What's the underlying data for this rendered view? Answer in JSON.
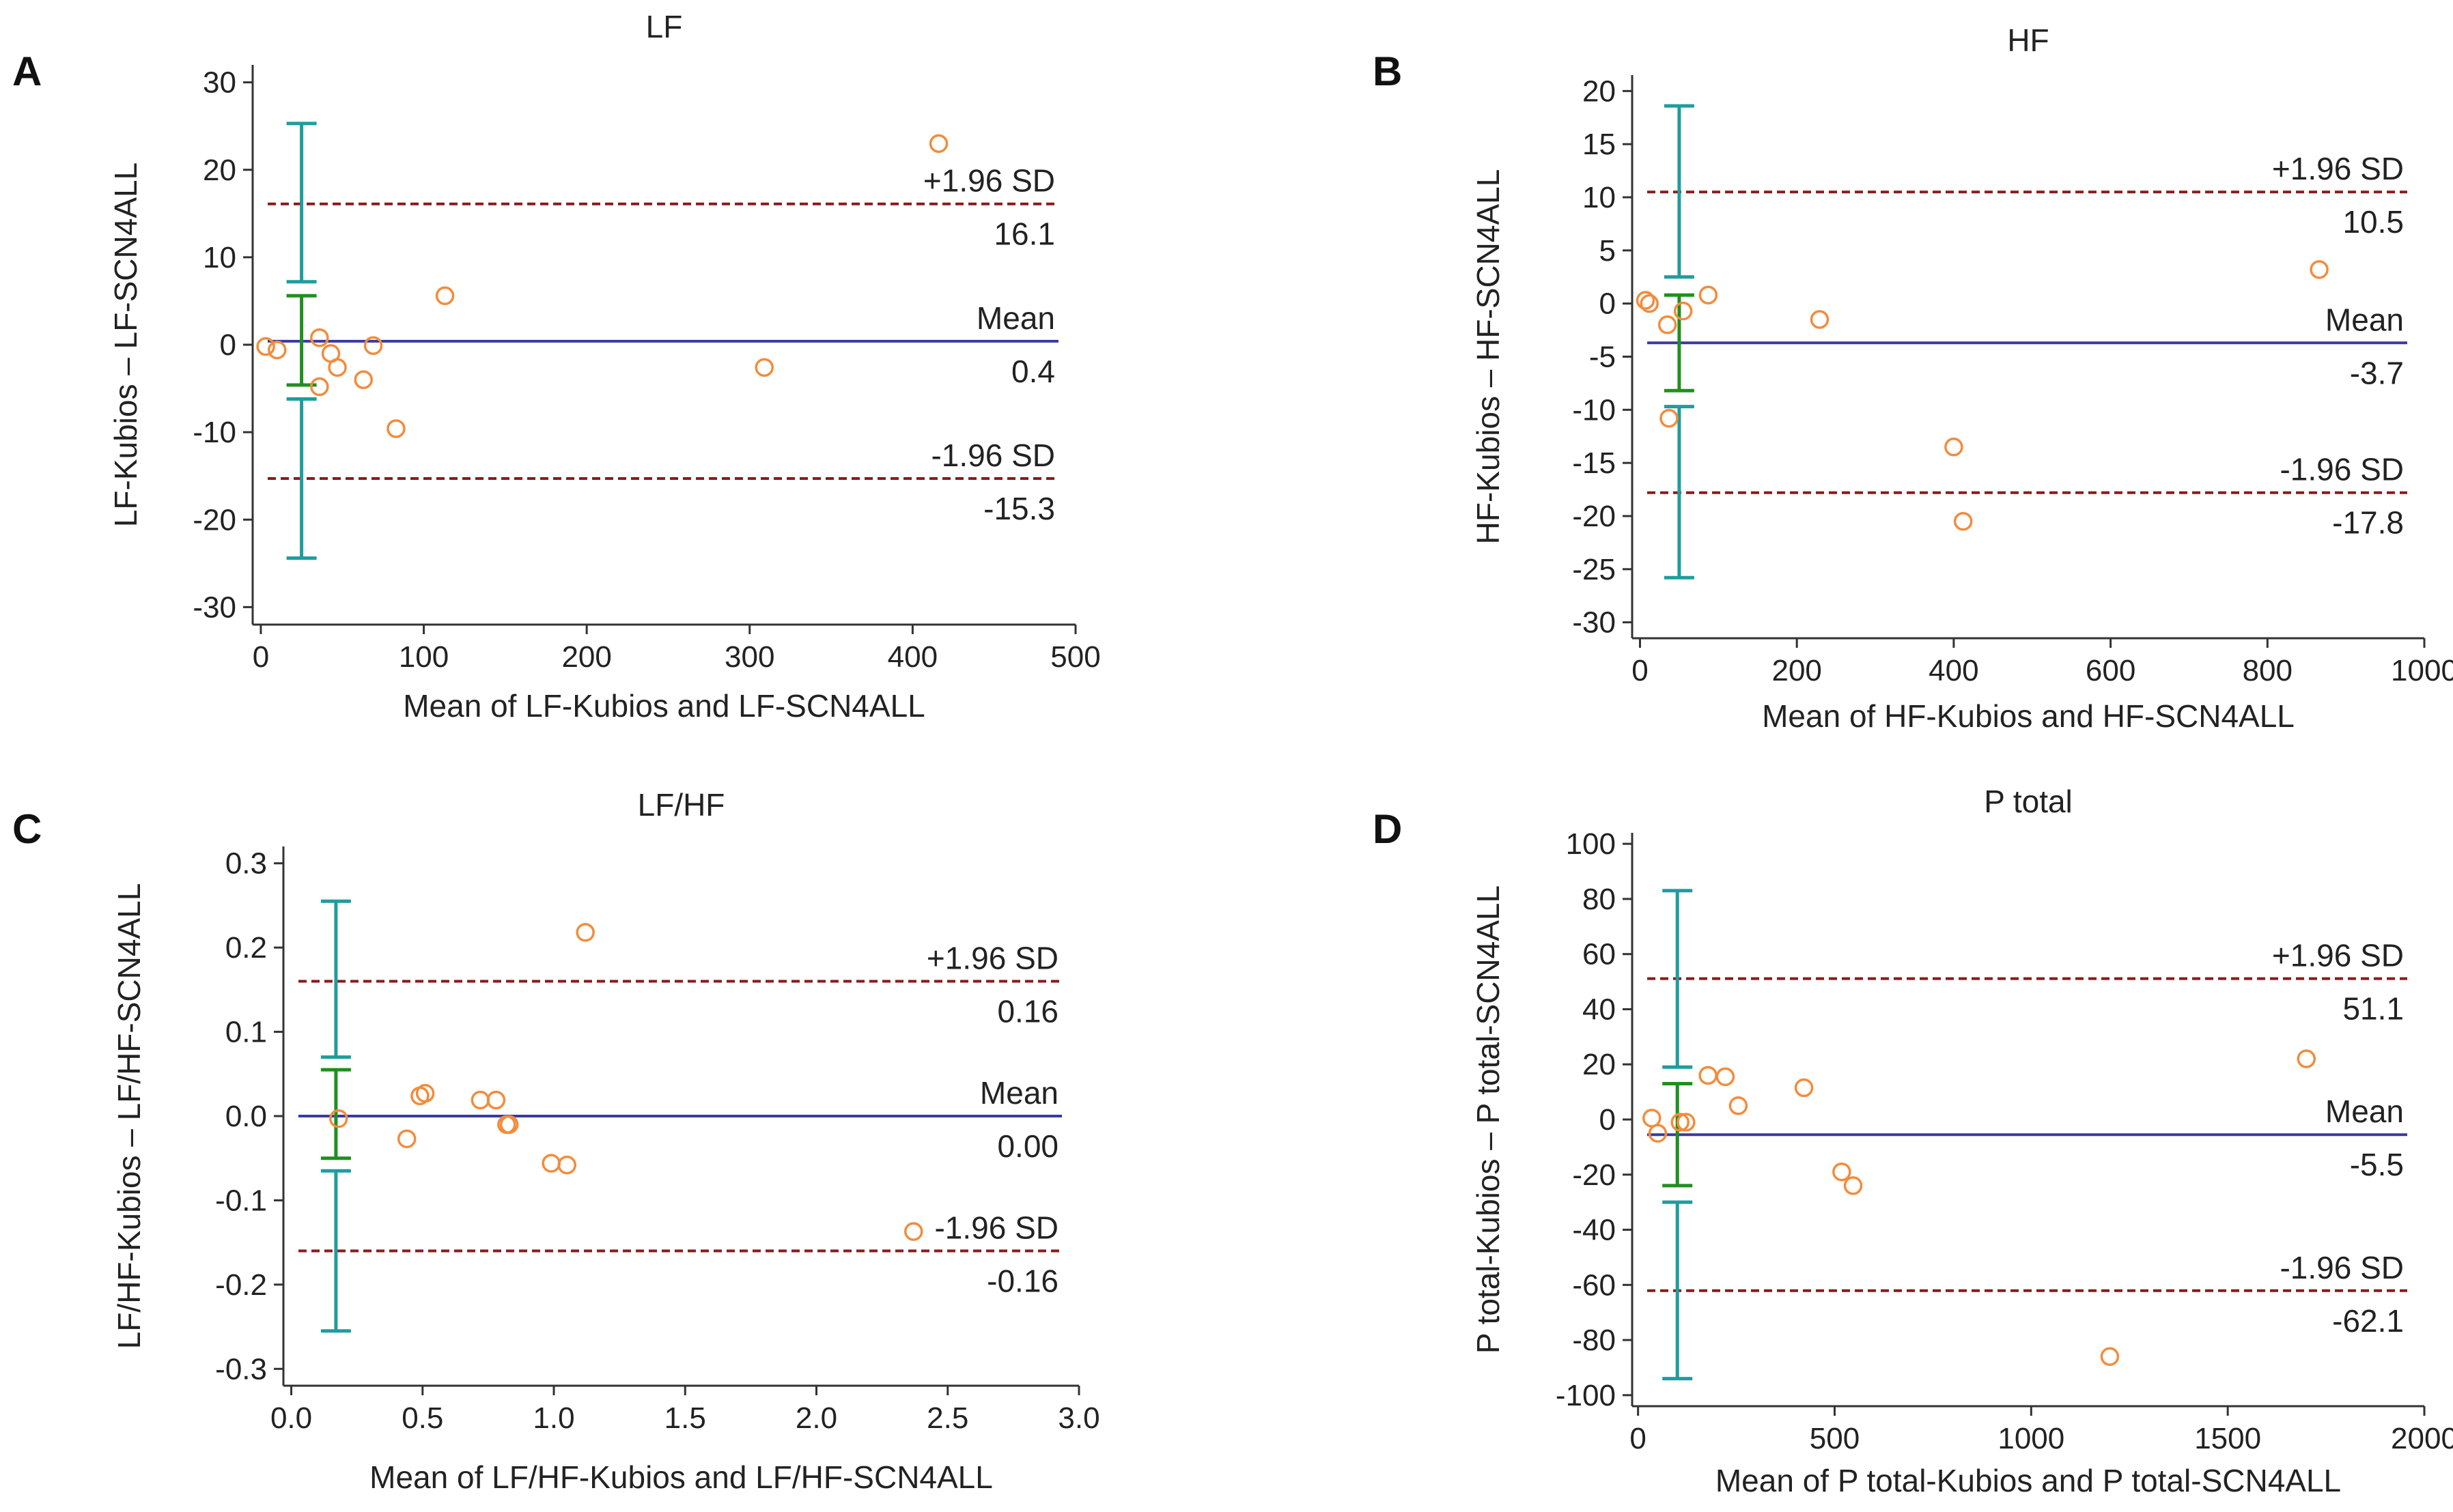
{
  "colors": {
    "mean_line": "#3a3a9e",
    "sd_line": "#8b1a1a",
    "point": "#f28c3c",
    "ci_outer": "#1e9d9d",
    "ci_mean": "#1f8f1f",
    "axis": "#333333"
  },
  "chart_data": [
    {
      "panel": "A",
      "type": "scatter",
      "title": "LF",
      "xlabel": "Mean of LF-Kubios and LF-SCN4ALL",
      "ylabel": "LF-Kubios – LF-SCN4ALL",
      "xlim": [
        -5,
        500
      ],
      "ylim": [
        -32,
        32
      ],
      "xticks": [
        0,
        100,
        200,
        300,
        400,
        500
      ],
      "xtick_labels": [
        "0",
        "100",
        "200",
        "300",
        "400",
        "500"
      ],
      "yticks": [
        30,
        20,
        10,
        0,
        -10,
        -20,
        -30
      ],
      "ytick_labels": [
        "30",
        "20",
        "10",
        "0",
        "-10",
        "-20",
        "-30"
      ],
      "mean": 0.4,
      "upper_loa": 16.1,
      "lower_loa": -15.3,
      "mean_text": "Mean",
      "mean_value_text": "0.4",
      "upper_text": "+1.96 SD",
      "upper_value_text": "16.1",
      "lower_text": "-1.96 SD",
      "lower_value_text": "-15.3",
      "ci_x": 25,
      "ci_upper": [
        7.2,
        25.3
      ],
      "ci_mean": [
        -4.6,
        5.6
      ],
      "ci_lower": [
        -24.4,
        -6.2
      ],
      "points": [
        {
          "x": 3,
          "y": -0.2
        },
        {
          "x": 10,
          "y": -0.6
        },
        {
          "x": 36,
          "y": 0.8
        },
        {
          "x": 36,
          "y": -4.8
        },
        {
          "x": 43,
          "y": -1.0
        },
        {
          "x": 47,
          "y": -2.6
        },
        {
          "x": 63,
          "y": -4.0
        },
        {
          "x": 69,
          "y": -0.1
        },
        {
          "x": 83,
          "y": -9.6
        },
        {
          "x": 113,
          "y": 5.6
        },
        {
          "x": 309,
          "y": -2.6
        },
        {
          "x": 416,
          "y": 23.0
        }
      ]
    },
    {
      "panel": "B",
      "type": "scatter",
      "title": "HF",
      "xlabel": "Mean of HF-Kubios and HF-SCN4ALL",
      "ylabel": "HF-Kubios – HF-SCN4ALL",
      "xlim": [
        -10,
        1000
      ],
      "ylim": [
        -31.5,
        21.5
      ],
      "xticks": [
        0,
        200,
        400,
        600,
        800,
        1000
      ],
      "xtick_labels": [
        "0",
        "200",
        "400",
        "600",
        "800",
        "1000"
      ],
      "yticks": [
        20,
        15,
        10,
        5,
        0,
        -5,
        -10,
        -15,
        -20,
        -25,
        -30
      ],
      "ytick_labels": [
        "20",
        "15",
        "10",
        "5",
        "0",
        "-5",
        "-10",
        "-15",
        "-20",
        "-25",
        "-30"
      ],
      "mean": -3.7,
      "upper_loa": 10.5,
      "lower_loa": -17.8,
      "mean_text": "Mean",
      "mean_value_text": "-3.7",
      "upper_text": "+1.96 SD",
      "upper_value_text": "10.5",
      "lower_text": "-1.96 SD",
      "lower_value_text": "-17.8",
      "ci_x": 50,
      "ci_upper": [
        2.5,
        18.6
      ],
      "ci_mean": [
        -8.2,
        0.8
      ],
      "ci_lower": [
        -25.8,
        -9.7
      ],
      "points": [
        {
          "x": 7,
          "y": 0.3
        },
        {
          "x": 12,
          "y": 0.0
        },
        {
          "x": 35,
          "y": -2.0
        },
        {
          "x": 37,
          "y": -10.8
        },
        {
          "x": 55,
          "y": -0.7
        },
        {
          "x": 87,
          "y": 0.8
        },
        {
          "x": 229,
          "y": -1.5
        },
        {
          "x": 400,
          "y": -13.5
        },
        {
          "x": 412,
          "y": -20.5
        },
        {
          "x": 866,
          "y": 3.2
        }
      ]
    },
    {
      "panel": "C",
      "type": "scatter",
      "title": "LF/HF",
      "xlabel": "Mean of LF/HF-Kubios and LF/HF-SCN4ALL",
      "ylabel": "LF/HF-Kubios – LF/HF-SCN4ALL",
      "xlim": [
        -0.03,
        3.0
      ],
      "ylim": [
        -0.32,
        0.32
      ],
      "xticks": [
        0.0,
        0.5,
        1.0,
        1.5,
        2.0,
        2.5,
        3.0
      ],
      "xtick_labels": [
        "0.0",
        "0.5",
        "1.0",
        "1.5",
        "2.0",
        "2.5",
        "3.0"
      ],
      "yticks": [
        0.3,
        0.2,
        0.1,
        0.0,
        -0.1,
        -0.2,
        -0.3
      ],
      "ytick_labels": [
        "0.3",
        "0.2",
        "0.1",
        "0.0",
        "-0.1",
        "-0.2",
        "-0.3"
      ],
      "mean": 0.0,
      "upper_loa": 0.16,
      "lower_loa": -0.16,
      "mean_text": "Mean",
      "mean_value_text": "0.00",
      "upper_text": "+1.96 SD",
      "upper_value_text": "0.16",
      "lower_text": "-1.96 SD",
      "lower_value_text": "-0.16",
      "ci_x": 0.17,
      "ci_upper": [
        0.07,
        0.255
      ],
      "ci_mean": [
        -0.05,
        0.055
      ],
      "ci_lower": [
        -0.255,
        -0.065
      ],
      "points": [
        {
          "x": 0.18,
          "y": -0.003
        },
        {
          "x": 0.44,
          "y": -0.027
        },
        {
          "x": 0.49,
          "y": 0.024
        },
        {
          "x": 0.51,
          "y": 0.027
        },
        {
          "x": 0.72,
          "y": 0.019
        },
        {
          "x": 0.78,
          "y": 0.019
        },
        {
          "x": 0.82,
          "y": -0.01
        },
        {
          "x": 0.83,
          "y": -0.01
        },
        {
          "x": 0.99,
          "y": -0.056
        },
        {
          "x": 1.05,
          "y": -0.058
        },
        {
          "x": 1.12,
          "y": 0.218
        },
        {
          "x": 2.37,
          "y": -0.137
        }
      ]
    },
    {
      "panel": "D",
      "type": "scatter",
      "title": "P total",
      "xlabel": "Mean of P total-Kubios and P total-SCN4ALL",
      "ylabel": "P total-Kubios – P total-SCN4ALL",
      "xlim": [
        -15,
        2000
      ],
      "ylim": [
        -104,
        104
      ],
      "xticks": [
        0,
        500,
        1000,
        1500,
        2000
      ],
      "xtick_labels": [
        "0",
        "500",
        "1000",
        "1500",
        "2000"
      ],
      "yticks": [
        100,
        80,
        60,
        40,
        20,
        0,
        -20,
        -40,
        -60,
        -80,
        -100
      ],
      "ytick_labels": [
        "100",
        "80",
        "60",
        "40",
        "20",
        "0",
        "-20",
        "-40",
        "-60",
        "-80",
        "-100"
      ],
      "mean": -5.5,
      "upper_loa": 51.1,
      "lower_loa": -62.1,
      "mean_text": "Mean",
      "mean_value_text": "-5.5",
      "upper_text": "+1.96 SD",
      "upper_value_text": "51.1",
      "lower_text": "-1.96 SD",
      "lower_value_text": "-62.1",
      "ci_x": 100,
      "ci_upper": [
        19,
        83
      ],
      "ci_mean": [
        -24,
        13
      ],
      "ci_lower": [
        -94,
        -30
      ],
      "points": [
        {
          "x": 35,
          "y": 0.5
        },
        {
          "x": 50,
          "y": -5.0
        },
        {
          "x": 107,
          "y": -1.0
        },
        {
          "x": 122,
          "y": -1.0
        },
        {
          "x": 178,
          "y": 16.0
        },
        {
          "x": 222,
          "y": 15.5
        },
        {
          "x": 255,
          "y": 5.0
        },
        {
          "x": 422,
          "y": 11.5
        },
        {
          "x": 518,
          "y": -19.0
        },
        {
          "x": 547,
          "y": -24.0
        },
        {
          "x": 1200,
          "y": -86.0
        },
        {
          "x": 1700,
          "y": 22.0
        }
      ]
    }
  ]
}
